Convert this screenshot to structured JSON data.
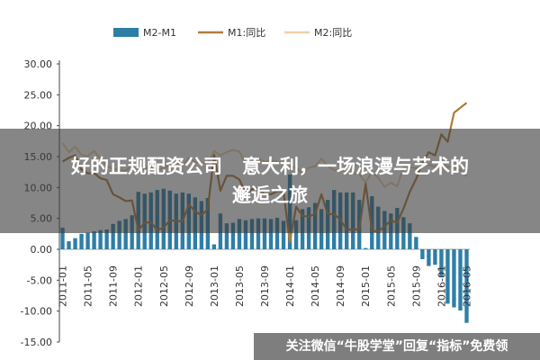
{
  "overlay": {
    "line1": "好的正规配资公司   意大利，一场浪漫与艺术的",
    "line2": "邂逅之旅"
  },
  "watermark": {
    "text": "关注微信“牛股学堂”回复“指标”免费领"
  },
  "colors": {
    "bar": "#2e7ea6",
    "m1": "#b07a3c",
    "m2": "#f2cfa8",
    "axis": "#444444"
  },
  "chart_data": {
    "type": "bar",
    "legend": [
      {
        "key": "diff",
        "label": "M2-M1",
        "kind": "bar"
      },
      {
        "key": "m1",
        "label": "M1:同比",
        "kind": "line"
      },
      {
        "key": "m2",
        "label": "M2:同比",
        "kind": "line"
      }
    ],
    "legend_position": "top",
    "ylim": [
      -15,
      30
    ],
    "yticks": [
      "30.00",
      "25.00",
      "20.00",
      "15.00",
      "10.00",
      "5.00",
      "0.00",
      "-5.00",
      "-10.00",
      "-15.00"
    ],
    "ytick_values": [
      30,
      25,
      20,
      15,
      10,
      5,
      0,
      -5,
      -10,
      -15
    ],
    "xtick_labels": [
      "2011-01",
      "2011-05",
      "2011-09",
      "2012-01",
      "2012-05",
      "2012-09",
      "2013-01",
      "2013-05",
      "2013-09",
      "2014-01",
      "2014-05",
      "2014-09",
      "2015-01",
      "2015-05",
      "2015-09",
      "2016-01",
      "2016-05"
    ],
    "xtick_every": 4,
    "categories": [
      "2011-01",
      "2011-02",
      "2011-03",
      "2011-04",
      "2011-05",
      "2011-06",
      "2011-07",
      "2011-08",
      "2011-09",
      "2011-10",
      "2011-11",
      "2011-12",
      "2012-01",
      "2012-02",
      "2012-03",
      "2012-04",
      "2012-05",
      "2012-06",
      "2012-07",
      "2012-08",
      "2012-09",
      "2012-10",
      "2012-11",
      "2012-12",
      "2013-01",
      "2013-02",
      "2013-03",
      "2013-04",
      "2013-05",
      "2013-06",
      "2013-07",
      "2013-08",
      "2013-09",
      "2013-10",
      "2013-11",
      "2013-12",
      "2014-01",
      "2014-02",
      "2014-03",
      "2014-04",
      "2014-05",
      "2014-06",
      "2014-07",
      "2014-08",
      "2014-09",
      "2014-10",
      "2014-11",
      "2014-12",
      "2015-01",
      "2015-02",
      "2015-03",
      "2015-04",
      "2015-05",
      "2015-06",
      "2015-07",
      "2015-08",
      "2015-09",
      "2015-10",
      "2015-11",
      "2015-12",
      "2016-01",
      "2016-02",
      "2016-03",
      "2016-04",
      "2016-05"
    ],
    "series": [
      {
        "name": "M2-M1",
        "key": "diff",
        "values": [
          3.5,
          1.3,
          1.8,
          2.5,
          2.7,
          2.9,
          3.1,
          3.2,
          4.1,
          4.6,
          4.9,
          5.5,
          9.3,
          9.0,
          9.2,
          9.6,
          9.8,
          9.5,
          9.0,
          9.2,
          9.0,
          8.4,
          7.8,
          8.3,
          0.8,
          5.8,
          4.2,
          4.3,
          4.9,
          4.7,
          4.9,
          5.0,
          5.0,
          4.9,
          5.1,
          4.6,
          12.1,
          4.7,
          6.5,
          6.8,
          7.5,
          6.5,
          8.0,
          9.6,
          9.2,
          9.2,
          9.2,
          8.0,
          0.2,
          8.6,
          6.9,
          6.2,
          5.8,
          6.7,
          5.2,
          4.2,
          2.0,
          -1.6,
          -2.7,
          -2.5,
          -4.4,
          -8.8,
          -9.4,
          -9.9,
          -11.9
        ]
      },
      {
        "name": "M1:同比",
        "key": "m1",
        "values": [
          14.2,
          14.8,
          15.2,
          12.9,
          12.3,
          12.3,
          11.5,
          11.2,
          8.9,
          8.4,
          7.8,
          7.9,
          3.1,
          4.3,
          4.4,
          3.1,
          3.5,
          4.7,
          4.6,
          4.5,
          7.3,
          6.1,
          5.5,
          6.5,
          15.3,
          9.5,
          11.9,
          11.9,
          11.3,
          9.1,
          9.7,
          9.9,
          8.9,
          8.9,
          9.4,
          9.3,
          1.2,
          6.9,
          5.4,
          5.3,
          5.7,
          8.9,
          5.7,
          5.7,
          4.8,
          3.2,
          3.2,
          3.2,
          10.6,
          3.0,
          2.9,
          3.7,
          4.7,
          4.3,
          6.6,
          9.3,
          11.4,
          14.0,
          15.7,
          15.2,
          18.6,
          17.4,
          22.1,
          22.9,
          23.7
        ]
      },
      {
        "name": "M2:同比",
        "key": "m2",
        "values": [
          17.2,
          15.7,
          16.6,
          15.3,
          15.1,
          15.9,
          14.7,
          13.5,
          13.0,
          12.9,
          12.7,
          13.6,
          12.4,
          13.0,
          13.4,
          12.8,
          13.2,
          13.6,
          13.9,
          13.5,
          14.8,
          14.1,
          13.9,
          13.8,
          15.9,
          15.2,
          15.7,
          16.1,
          15.8,
          14.0,
          14.5,
          14.7,
          14.2,
          14.3,
          14.2,
          13.6,
          13.2,
          13.3,
          12.1,
          13.2,
          13.4,
          14.7,
          13.5,
          12.8,
          12.9,
          12.6,
          12.3,
          12.2,
          10.8,
          12.5,
          11.6,
          10.1,
          10.8,
          10.2,
          13.3,
          13.3,
          13.1,
          13.5,
          13.7,
          13.3,
          14.0,
          13.3,
          13.4,
          12.8,
          11.8
        ]
      }
    ]
  }
}
